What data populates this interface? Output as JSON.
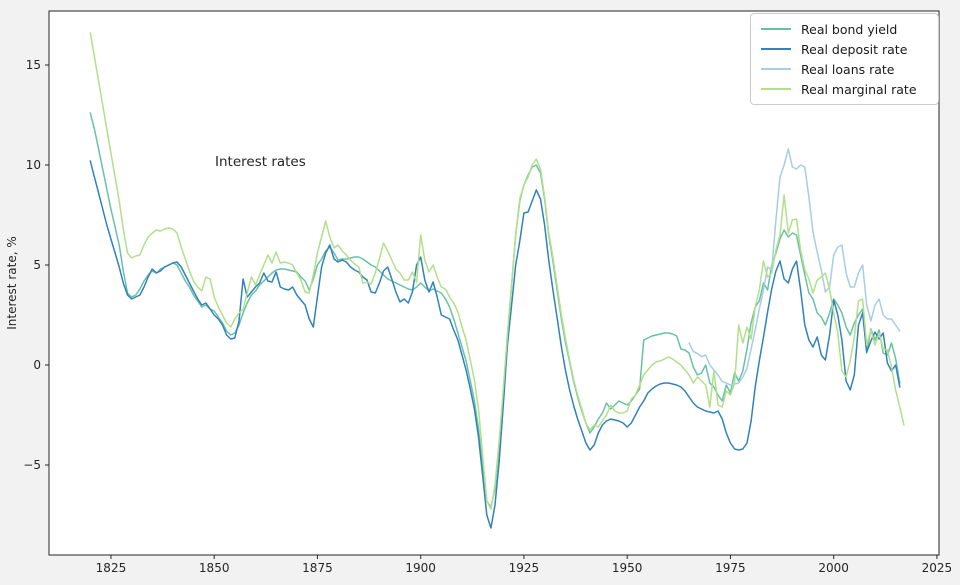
{
  "figure": {
    "annotation": "Interest rates",
    "background_color": "#f2f2f2",
    "plot_background_color": "#ffffff",
    "spine_color": "#262626"
  },
  "chart_data": {
    "type": "line",
    "title": "Interest rates",
    "xlabel": "",
    "ylabel": "Interest rate, %",
    "grid": false,
    "legend_position": "upper right",
    "x_axis": {
      "range": [
        1810,
        2025.5
      ],
      "ticks": [
        1825,
        1850,
        1875,
        1900,
        1925,
        1950,
        1975,
        2000,
        2025
      ],
      "tick_labels": [
        "1825",
        "1850",
        "1875",
        "1900",
        "1925",
        "1950",
        "1975",
        "2000",
        "2025"
      ]
    },
    "y_axis": {
      "range": [
        -9.5,
        17.7
      ],
      "ticks": [
        15,
        10,
        5,
        0,
        -5
      ],
      "tick_labels": [
        "15",
        "10",
        "5",
        "0",
        "−5"
      ]
    },
    "series": [
      {
        "name": "Real bond yield",
        "color": "#66c2a5",
        "start_year": 1820,
        "end_year": 2016,
        "values": [
          12.6,
          11.8,
          10.8,
          9.8,
          8.8,
          7.8,
          6.9,
          6.0,
          4.7,
          3.6,
          3.4,
          3.5,
          3.8,
          4.2,
          4.5,
          4.7,
          4.6,
          4.8,
          4.9,
          5.0,
          5.1,
          5.0,
          4.6,
          4.2,
          3.9,
          3.5,
          3.2,
          2.9,
          3.0,
          2.8,
          2.7,
          2.4,
          2.1,
          1.7,
          1.5,
          1.6,
          2.0,
          2.6,
          3.1,
          3.5,
          3.7,
          4.0,
          4.2,
          4.4,
          4.6,
          4.75,
          4.8,
          4.8,
          4.75,
          4.7,
          4.65,
          4.4,
          4.2,
          3.75,
          4.3,
          5.0,
          5.3,
          5.7,
          5.9,
          5.6,
          5.25,
          5.3,
          5.3,
          5.35,
          5.4,
          5.4,
          5.3,
          5.15,
          5.0,
          4.9,
          4.7,
          4.5,
          4.3,
          4.2,
          4.1,
          4.0,
          3.9,
          3.8,
          3.75,
          3.9,
          4.1,
          3.9,
          3.7,
          3.8,
          3.7,
          3.6,
          3.3,
          2.9,
          2.3,
          1.6,
          0.9,
          0.2,
          -0.8,
          -1.8,
          -3.2,
          -5.0,
          -6.8,
          -7.1,
          -6.2,
          -4.0,
          -1.5,
          1.5,
          4.0,
          6.5,
          8.2,
          9.0,
          9.5,
          9.9,
          10.0,
          9.6,
          8.3,
          6.5,
          5.2,
          3.8,
          2.4,
          1.2,
          0.2,
          -0.8,
          -1.6,
          -2.3,
          -2.9,
          -3.4,
          -3.1,
          -2.7,
          -2.4,
          -1.9,
          -2.2,
          -2.0,
          -1.8,
          -1.9,
          -2.0,
          -1.8,
          -1.5,
          -1.2,
          1.25,
          1.35,
          1.45,
          1.5,
          1.55,
          1.6,
          1.6,
          1.55,
          1.45,
          0.8,
          0.75,
          0.6,
          -0.1,
          -0.5,
          -0.4,
          0.0,
          -0.9,
          -1.1,
          -1.5,
          -1.8,
          -1.0,
          -1.4,
          -0.4,
          -0.8,
          -0.3,
          0.8,
          2.1,
          2.9,
          3.2,
          4.1,
          3.75,
          5.0,
          5.6,
          6.3,
          6.75,
          6.4,
          6.6,
          6.5,
          5.5,
          4.5,
          3.6,
          3.3,
          2.6,
          2.4,
          2.0,
          2.6,
          3.3,
          3.0,
          2.6,
          1.9,
          1.5,
          2.1,
          2.5,
          2.8,
          0.6,
          1.8,
          1.25,
          1.75,
          0.6,
          0.5,
          1.1,
          0.33,
          -0.9
        ]
      },
      {
        "name": "Real deposit rate",
        "color": "#3182bd",
        "start_year": 1820,
        "end_year": 2016,
        "values": [
          10.2,
          9.4,
          8.6,
          7.8,
          7.0,
          6.3,
          5.6,
          4.9,
          4.1,
          3.5,
          3.3,
          3.4,
          3.5,
          3.9,
          4.4,
          4.8,
          4.6,
          4.7,
          4.9,
          5.0,
          5.1,
          5.15,
          4.9,
          4.5,
          4.1,
          3.7,
          3.3,
          3.0,
          3.1,
          2.8,
          2.5,
          2.3,
          2.0,
          1.5,
          1.3,
          1.35,
          2.2,
          4.3,
          3.4,
          3.65,
          3.9,
          4.1,
          4.6,
          4.2,
          4.15,
          4.65,
          3.9,
          3.8,
          3.75,
          3.9,
          3.5,
          3.25,
          3.0,
          2.3,
          1.9,
          3.4,
          4.9,
          5.6,
          6.0,
          5.3,
          5.15,
          5.25,
          5.15,
          4.9,
          4.75,
          4.65,
          4.4,
          4.25,
          3.65,
          3.6,
          4.1,
          4.7,
          4.9,
          4.3,
          3.65,
          3.15,
          3.3,
          3.1,
          3.65,
          5.0,
          5.4,
          4.25,
          3.65,
          4.15,
          3.4,
          2.5,
          2.4,
          2.3,
          1.75,
          1.25,
          0.5,
          -0.25,
          -1.2,
          -2.2,
          -3.6,
          -5.5,
          -7.5,
          -8.15,
          -7.0,
          -4.8,
          -2.0,
          1.0,
          3.0,
          5.0,
          6.2,
          7.6,
          7.65,
          8.2,
          8.75,
          8.3,
          7.0,
          5.25,
          3.75,
          2.4,
          1.0,
          -0.2,
          -1.2,
          -2.0,
          -2.7,
          -3.3,
          -3.9,
          -4.25,
          -4.0,
          -3.4,
          -3.0,
          -2.8,
          -2.7,
          -2.75,
          -2.8,
          -2.9,
          -3.1,
          -2.9,
          -2.5,
          -2.1,
          -1.8,
          -1.4,
          -1.2,
          -1.05,
          -0.95,
          -0.9,
          -0.9,
          -0.95,
          -1.0,
          -1.1,
          -1.3,
          -1.6,
          -1.9,
          -2.1,
          -2.2,
          -2.3,
          -2.35,
          -2.4,
          -2.3,
          -2.7,
          -3.4,
          -3.9,
          -4.2,
          -4.25,
          -4.2,
          -3.9,
          -2.8,
          -1.1,
          0.2,
          1.4,
          2.65,
          3.8,
          4.7,
          5.2,
          4.3,
          4.1,
          4.8,
          5.2,
          3.75,
          2.0,
          1.25,
          0.9,
          1.4,
          0.5,
          0.25,
          1.5,
          3.25,
          2.5,
          1.25,
          -0.8,
          -1.25,
          -0.5,
          2.0,
          2.6,
          0.65,
          1.2,
          1.65,
          1.3,
          1.6,
          0.1,
          -0.3,
          0.0,
          -1.1
        ]
      },
      {
        "name": "Real loans rate",
        "color": "#a6cee3",
        "start_year": 1965,
        "end_year": 2016,
        "values": [
          1.1,
          0.67,
          0.58,
          0.42,
          0.5,
          0.0,
          -0.25,
          -0.5,
          -0.83,
          -0.9,
          -1.0,
          -0.95,
          -0.9,
          -0.6,
          -0.17,
          0.8,
          1.75,
          2.8,
          3.75,
          4.9,
          4.75,
          7.25,
          9.4,
          10.0,
          10.8,
          9.9,
          9.8,
          10.0,
          9.9,
          8.4,
          6.65,
          5.65,
          4.75,
          3.65,
          3.9,
          5.5,
          5.9,
          6.0,
          4.6,
          3.9,
          3.9,
          4.6,
          5.0,
          3.0,
          2.2,
          3.0,
          3.3,
          2.5,
          2.3,
          2.3,
          2.0,
          1.7
        ]
      },
      {
        "name": "Real marginal rate",
        "color": "#b2df8a",
        "start_year": 1820,
        "end_year": 2017,
        "values": [
          16.6,
          15.4,
          14.2,
          13.0,
          11.8,
          10.6,
          9.4,
          8.2,
          6.8,
          5.6,
          5.35,
          5.45,
          5.5,
          6.0,
          6.4,
          6.6,
          6.75,
          6.7,
          6.8,
          6.85,
          6.8,
          6.6,
          5.9,
          5.3,
          4.7,
          4.2,
          3.9,
          3.7,
          4.4,
          4.3,
          3.4,
          2.9,
          2.5,
          2.1,
          1.9,
          2.3,
          2.6,
          2.8,
          3.6,
          4.4,
          4.0,
          4.5,
          5.0,
          5.5,
          5.1,
          5.65,
          5.1,
          5.15,
          5.1,
          5.0,
          4.6,
          4.25,
          3.65,
          3.6,
          4.5,
          5.6,
          6.4,
          7.2,
          6.4,
          5.85,
          6.0,
          5.7,
          5.5,
          5.25,
          5.05,
          4.9,
          4.1,
          4.15,
          4.05,
          4.6,
          5.3,
          6.1,
          5.7,
          5.25,
          4.8,
          4.6,
          4.25,
          4.25,
          4.65,
          4.15,
          6.5,
          5.25,
          4.65,
          5.0,
          4.4,
          3.9,
          3.8,
          3.4,
          3.1,
          2.65,
          1.9,
          1.25,
          0.25,
          -0.75,
          -2.2,
          -4.5,
          -6.8,
          -7.2,
          -6.0,
          -3.8,
          -1.2,
          1.5,
          4.0,
          6.5,
          8.3,
          9.0,
          9.4,
          10.0,
          10.3,
          9.8,
          8.4,
          6.6,
          5.4,
          4.0,
          2.6,
          1.4,
          0.3,
          -0.7,
          -1.5,
          -2.2,
          -2.9,
          -3.25,
          -3.0,
          -3.1,
          -2.8,
          -2.5,
          -2.0,
          -2.3,
          -2.4,
          -2.4,
          -2.3,
          -1.7,
          -1.5,
          -1.0,
          -0.5,
          -0.25,
          0.0,
          0.15,
          0.2,
          0.3,
          0.4,
          0.3,
          0.15,
          0.0,
          -0.25,
          -0.5,
          -0.9,
          -0.6,
          -0.8,
          -1.0,
          -2.1,
          -0.3,
          -2.0,
          -2.1,
          -1.3,
          -1.5,
          -0.9,
          2.0,
          1.1,
          1.9,
          1.3,
          2.9,
          3.75,
          5.2,
          4.4,
          4.6,
          5.75,
          6.5,
          8.5,
          6.6,
          7.25,
          7.3,
          5.75,
          4.75,
          4.3,
          3.6,
          4.25,
          4.4,
          4.6,
          3.8,
          2.6,
          1.6,
          -0.3,
          -0.6,
          0.2,
          1.4,
          3.2,
          3.3,
          1.0,
          1.75,
          1.0,
          1.6,
          0.8,
          0.75,
          -0.1,
          -1.25,
          -2.1,
          -3.0
        ]
      }
    ]
  }
}
